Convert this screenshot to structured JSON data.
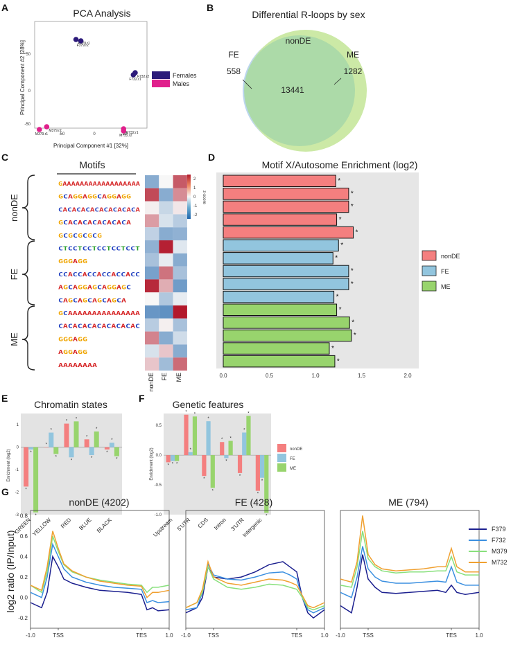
{
  "panels": {
    "A": "A",
    "B": "B",
    "C": "C",
    "D": "D",
    "E": "E",
    "F": "F",
    "G": "G"
  },
  "colors": {
    "nonDE": "#f47f7f",
    "FE": "#92c5de",
    "ME": "#98d46d",
    "female": "#2c1a7a",
    "male": "#e0208c",
    "venn_fe": "#bcd6ee",
    "venn_me": "#cce9a6",
    "venn_overlap": "#a9d8a9",
    "F379": "#1b1f8f",
    "F732": "#3a8fe0",
    "M379": "#88e07c",
    "M732": "#f0a030"
  },
  "pca": {
    "title": "PCA Analysis",
    "xlabel": "Principal Component #1 [32%]",
    "ylabel": "Principal Component #2 [28%]",
    "xticks": [
      "-50",
      "0",
      "50"
    ],
    "yticks": [
      "50",
      "0",
      "-50"
    ],
    "legend": [
      "Females",
      "Males"
    ],
    "points": [
      {
        "label": "F379.r1",
        "pc1": -30,
        "pc2": 76,
        "group": "female"
      },
      {
        "label": "F379.r2",
        "pc1": -22,
        "pc2": 74,
        "group": "female"
      },
      {
        "label": "F732.r2",
        "pc1": 67,
        "pc2": 28,
        "group": "female"
      },
      {
        "label": "F732.r1",
        "pc1": 64,
        "pc2": 25,
        "group": "female"
      },
      {
        "label": "M379.r2",
        "pc1": -78,
        "pc2": -50,
        "group": "male"
      },
      {
        "label": "M379.r1",
        "pc1": -90,
        "pc2": -54,
        "group": "male"
      },
      {
        "label": "M732.r1",
        "pc1": 48,
        "pc2": -53,
        "group": "male"
      },
      {
        "label": "M732.r2",
        "pc1": 48,
        "pc2": -56,
        "group": "male"
      }
    ]
  },
  "venn": {
    "title": "Differential R-loops by sex",
    "nonDE_label": "nonDE",
    "FE_label": "FE",
    "ME_label": "ME",
    "FE_count": "558",
    "ME_count": "1282",
    "overlap_count": "13441"
  },
  "motifs": {
    "title": "Motifs",
    "groups": [
      "nonDE",
      "FE",
      "ME"
    ],
    "heatmap_cols": [
      "nonDE",
      "FE",
      "ME"
    ],
    "colorbar_title": "z-score",
    "colorbar_ticks": [
      "2",
      "1",
      "0",
      "-1",
      "-2"
    ],
    "logos": [
      "GAAAAAAAAAAAAAAAAAA",
      "GCAGGAGGCAGGAGG",
      "CACACACACACACACACA",
      "GCACACACACACACA",
      "GCGCGCGCG",
      "CTCCTCCTCCTCCTCCT",
      "GGGAGG",
      "CCACCACCACCACCACC",
      "AGCAGGAGCAGGAGC",
      "CAGCAGCAGCAGCA",
      "GCAAAAAAAAAAAAAAA",
      "CACACACACACACACAC",
      "GGGAGG",
      "AGGAGG",
      "AAAAAAAA"
    ],
    "heatmap": [
      [
        -1.4,
        0.0,
        1.9
      ],
      [
        2.1,
        -1.4,
        1.3
      ],
      [
        0.1,
        -0.6,
        0.2
      ],
      [
        1.1,
        -0.4,
        -0.8
      ],
      [
        -0.7,
        -1.4,
        -1.3
      ],
      [
        -1.3,
        2.6,
        -0.3
      ],
      [
        -1.0,
        -0.2,
        -1.4
      ],
      [
        -1.6,
        1.6,
        -1.0
      ],
      [
        2.5,
        0.9,
        -1.7
      ],
      [
        0.0,
        -0.9,
        -0.2
      ],
      [
        -1.8,
        -1.9,
        2.8
      ],
      [
        -0.8,
        0.1,
        -1.0
      ],
      [
        1.4,
        -1.4,
        -0.5
      ],
      [
        -0.4,
        0.6,
        -1.4
      ],
      [
        0.6,
        -1.1,
        1.7
      ]
    ]
  },
  "chart_data": [
    {
      "type": "bar",
      "title": "Motif X/Autosome Enrichment (log2)",
      "orientation": "horizontal",
      "xlim": [
        0,
        2.0
      ],
      "xticks": [
        "0.0",
        "0.5",
        "1.0",
        "1.5",
        "2.0"
      ],
      "values": [
        1.22,
        1.36,
        1.36,
        1.23,
        1.41,
        1.25,
        1.19,
        1.36,
        1.36,
        1.2,
        1.23,
        1.37,
        1.39,
        1.15,
        1.21
      ],
      "groups": [
        "nonDE",
        "nonDE",
        "nonDE",
        "nonDE",
        "nonDE",
        "FE",
        "FE",
        "FE",
        "FE",
        "FE",
        "ME",
        "ME",
        "ME",
        "ME",
        "ME"
      ],
      "star": "*",
      "legend": [
        "nonDE",
        "FE",
        "ME"
      ]
    },
    {
      "type": "bar",
      "title": "Chromatin states",
      "ylabel": "Enrichment (log2)",
      "categories": [
        "GREEN",
        "YELLOW",
        "RED",
        "BLUE",
        "BLACK"
      ],
      "ylim": [
        -3,
        1.5
      ],
      "yticks": [
        "1",
        "0",
        "-1",
        "-2",
        "-3"
      ],
      "series": [
        {
          "name": "nonDE",
          "values": [
            -1.75,
            0.0,
            1.05,
            0.35,
            -0.1
          ]
        },
        {
          "name": "FE",
          "values": [
            -0.1,
            0.65,
            -0.45,
            -0.35,
            0.2
          ]
        },
        {
          "name": "ME",
          "values": [
            -2.9,
            -0.3,
            1.15,
            0.7,
            -0.4
          ]
        }
      ],
      "star": "*"
    },
    {
      "type": "bar",
      "title": "Genetic features",
      "ylabel": "Enrichment (log2)",
      "categories": [
        "Upstream",
        "5'UTR",
        "CDS",
        "Intron",
        "3'UTR",
        "Intergenic"
      ],
      "ylim": [
        -1.0,
        0.7
      ],
      "yticks": [
        "0.5",
        "0.0",
        "-0.5",
        "-1.0"
      ],
      "series": [
        {
          "name": "nonDE",
          "values": [
            -0.12,
            0.68,
            -0.35,
            0.22,
            -0.3,
            -0.6
          ]
        },
        {
          "name": "FE",
          "values": [
            -0.1,
            0.05,
            0.57,
            -0.05,
            0.38,
            -0.38
          ]
        },
        {
          "name": "ME",
          "values": [
            -0.1,
            0.65,
            -0.55,
            0.24,
            0.66,
            -0.97
          ]
        }
      ],
      "legend": [
        "nonDE",
        "FE",
        "ME"
      ],
      "star": "*"
    },
    {
      "type": "line",
      "ylabel": "log2 ratio (IP/Input)",
      "xticks": [
        "-1.0",
        "TSS",
        "TES",
        "1.0"
      ],
      "ylim": [
        -0.3,
        0.85
      ],
      "yticks": [
        "0.8",
        "0.6",
        "0.4",
        "0.2",
        "0.0",
        "-0.2"
      ],
      "legend": [
        "F379",
        "F732",
        "M379",
        "M732"
      ],
      "panels": [
        {
          "title": "nonDE (4202)",
          "series": [
            {
              "name": "F379",
              "x": [
                0,
                0.08,
                0.12,
                0.16,
                0.2,
                0.24,
                0.3,
                0.4,
                0.5,
                0.6,
                0.7,
                0.8,
                0.84,
                0.88,
                0.92,
                1
              ],
              "y": [
                -0.05,
                -0.1,
                0.05,
                0.4,
                0.3,
                0.18,
                0.14,
                0.1,
                0.07,
                0.06,
                0.05,
                0.03,
                -0.12,
                -0.1,
                -0.13,
                -0.12
              ]
            },
            {
              "name": "F732",
              "x": [
                0,
                0.08,
                0.12,
                0.16,
                0.2,
                0.24,
                0.3,
                0.4,
                0.5,
                0.6,
                0.7,
                0.8,
                0.84,
                0.88,
                0.92,
                1
              ],
              "y": [
                0.05,
                0.0,
                0.2,
                0.52,
                0.4,
                0.28,
                0.2,
                0.15,
                0.12,
                0.1,
                0.09,
                0.08,
                -0.05,
                -0.03,
                -0.05,
                -0.04
              ]
            },
            {
              "name": "M379",
              "x": [
                0,
                0.08,
                0.12,
                0.16,
                0.2,
                0.24,
                0.3,
                0.4,
                0.5,
                0.6,
                0.7,
                0.8,
                0.84,
                0.88,
                0.92,
                1
              ],
              "y": [
                0.12,
                0.05,
                0.25,
                0.6,
                0.45,
                0.32,
                0.25,
                0.2,
                0.17,
                0.15,
                0.13,
                0.12,
                0.05,
                0.1,
                0.1,
                0.12
              ]
            },
            {
              "name": "M732",
              "x": [
                0,
                0.08,
                0.12,
                0.16,
                0.2,
                0.24,
                0.3,
                0.4,
                0.5,
                0.6,
                0.7,
                0.8,
                0.84,
                0.88,
                0.92,
                1
              ],
              "y": [
                0.12,
                0.07,
                0.3,
                0.65,
                0.48,
                0.33,
                0.26,
                0.2,
                0.16,
                0.14,
                0.12,
                0.11,
                0.0,
                0.05,
                0.05,
                0.07
              ]
            }
          ]
        },
        {
          "title": "FE (428)",
          "series": [
            {
              "name": "F379",
              "x": [
                0,
                0.08,
                0.12,
                0.16,
                0.2,
                0.3,
                0.4,
                0.5,
                0.6,
                0.7,
                0.75,
                0.8,
                0.84,
                0.88,
                0.92,
                1
              ],
              "y": [
                -0.15,
                -0.1,
                0.0,
                0.3,
                0.2,
                0.18,
                0.2,
                0.25,
                0.32,
                0.35,
                0.3,
                0.25,
                0.0,
                -0.15,
                -0.2,
                -0.12
              ]
            },
            {
              "name": "F732",
              "x": [
                0,
                0.08,
                0.12,
                0.16,
                0.2,
                0.3,
                0.4,
                0.5,
                0.6,
                0.7,
                0.75,
                0.8,
                0.84,
                0.88,
                0.92,
                1
              ],
              "y": [
                -0.12,
                -0.1,
                0.05,
                0.33,
                0.22,
                0.18,
                0.17,
                0.2,
                0.24,
                0.25,
                0.22,
                0.18,
                0.0,
                -0.12,
                -0.15,
                -0.1
              ]
            },
            {
              "name": "M379",
              "x": [
                0,
                0.08,
                0.12,
                0.16,
                0.2,
                0.3,
                0.4,
                0.5,
                0.6,
                0.7,
                0.75,
                0.8,
                0.84,
                0.88,
                0.92,
                1
              ],
              "y": [
                -0.1,
                -0.05,
                0.05,
                0.3,
                0.18,
                0.1,
                0.08,
                0.1,
                0.13,
                0.12,
                0.1,
                0.08,
                0.0,
                -0.1,
                -0.12,
                -0.08
              ]
            },
            {
              "name": "M732",
              "x": [
                0,
                0.08,
                0.12,
                0.16,
                0.2,
                0.3,
                0.4,
                0.5,
                0.6,
                0.7,
                0.75,
                0.8,
                0.84,
                0.88,
                0.92,
                1
              ],
              "y": [
                -0.1,
                -0.05,
                0.08,
                0.35,
                0.2,
                0.14,
                0.12,
                0.15,
                0.18,
                0.17,
                0.15,
                0.12,
                0.02,
                -0.08,
                -0.1,
                -0.05
              ]
            }
          ]
        },
        {
          "title": "ME (794)",
          "series": [
            {
              "name": "F379",
              "x": [
                0,
                0.08,
                0.12,
                0.16,
                0.2,
                0.25,
                0.3,
                0.4,
                0.5,
                0.6,
                0.7,
                0.76,
                0.8,
                0.84,
                0.9,
                1
              ],
              "y": [
                -0.08,
                -0.15,
                0.1,
                0.42,
                0.18,
                0.1,
                0.05,
                0.04,
                0.05,
                0.06,
                0.07,
                0.05,
                0.12,
                0.05,
                0.03,
                0.05
              ]
            },
            {
              "name": "F732",
              "x": [
                0,
                0.08,
                0.12,
                0.16,
                0.2,
                0.25,
                0.3,
                0.4,
                0.5,
                0.6,
                0.7,
                0.76,
                0.8,
                0.84,
                0.9,
                1
              ],
              "y": [
                0.05,
                0.0,
                0.2,
                0.5,
                0.28,
                0.2,
                0.16,
                0.14,
                0.14,
                0.15,
                0.16,
                0.15,
                0.3,
                0.15,
                0.12,
                0.12
              ]
            },
            {
              "name": "M379",
              "x": [
                0,
                0.08,
                0.12,
                0.16,
                0.2,
                0.25,
                0.3,
                0.4,
                0.5,
                0.6,
                0.7,
                0.76,
                0.8,
                0.84,
                0.9,
                1
              ],
              "y": [
                0.12,
                0.1,
                0.3,
                0.65,
                0.38,
                0.3,
                0.26,
                0.24,
                0.25,
                0.25,
                0.26,
                0.26,
                0.4,
                0.25,
                0.22,
                0.22
              ]
            },
            {
              "name": "M732",
              "x": [
                0,
                0.08,
                0.12,
                0.16,
                0.2,
                0.25,
                0.3,
                0.4,
                0.5,
                0.6,
                0.7,
                0.76,
                0.8,
                0.84,
                0.9,
                1
              ],
              "y": [
                0.18,
                0.15,
                0.35,
                0.8,
                0.42,
                0.32,
                0.28,
                0.26,
                0.27,
                0.28,
                0.3,
                0.3,
                0.48,
                0.3,
                0.25,
                0.25
              ]
            }
          ]
        }
      ]
    }
  ]
}
